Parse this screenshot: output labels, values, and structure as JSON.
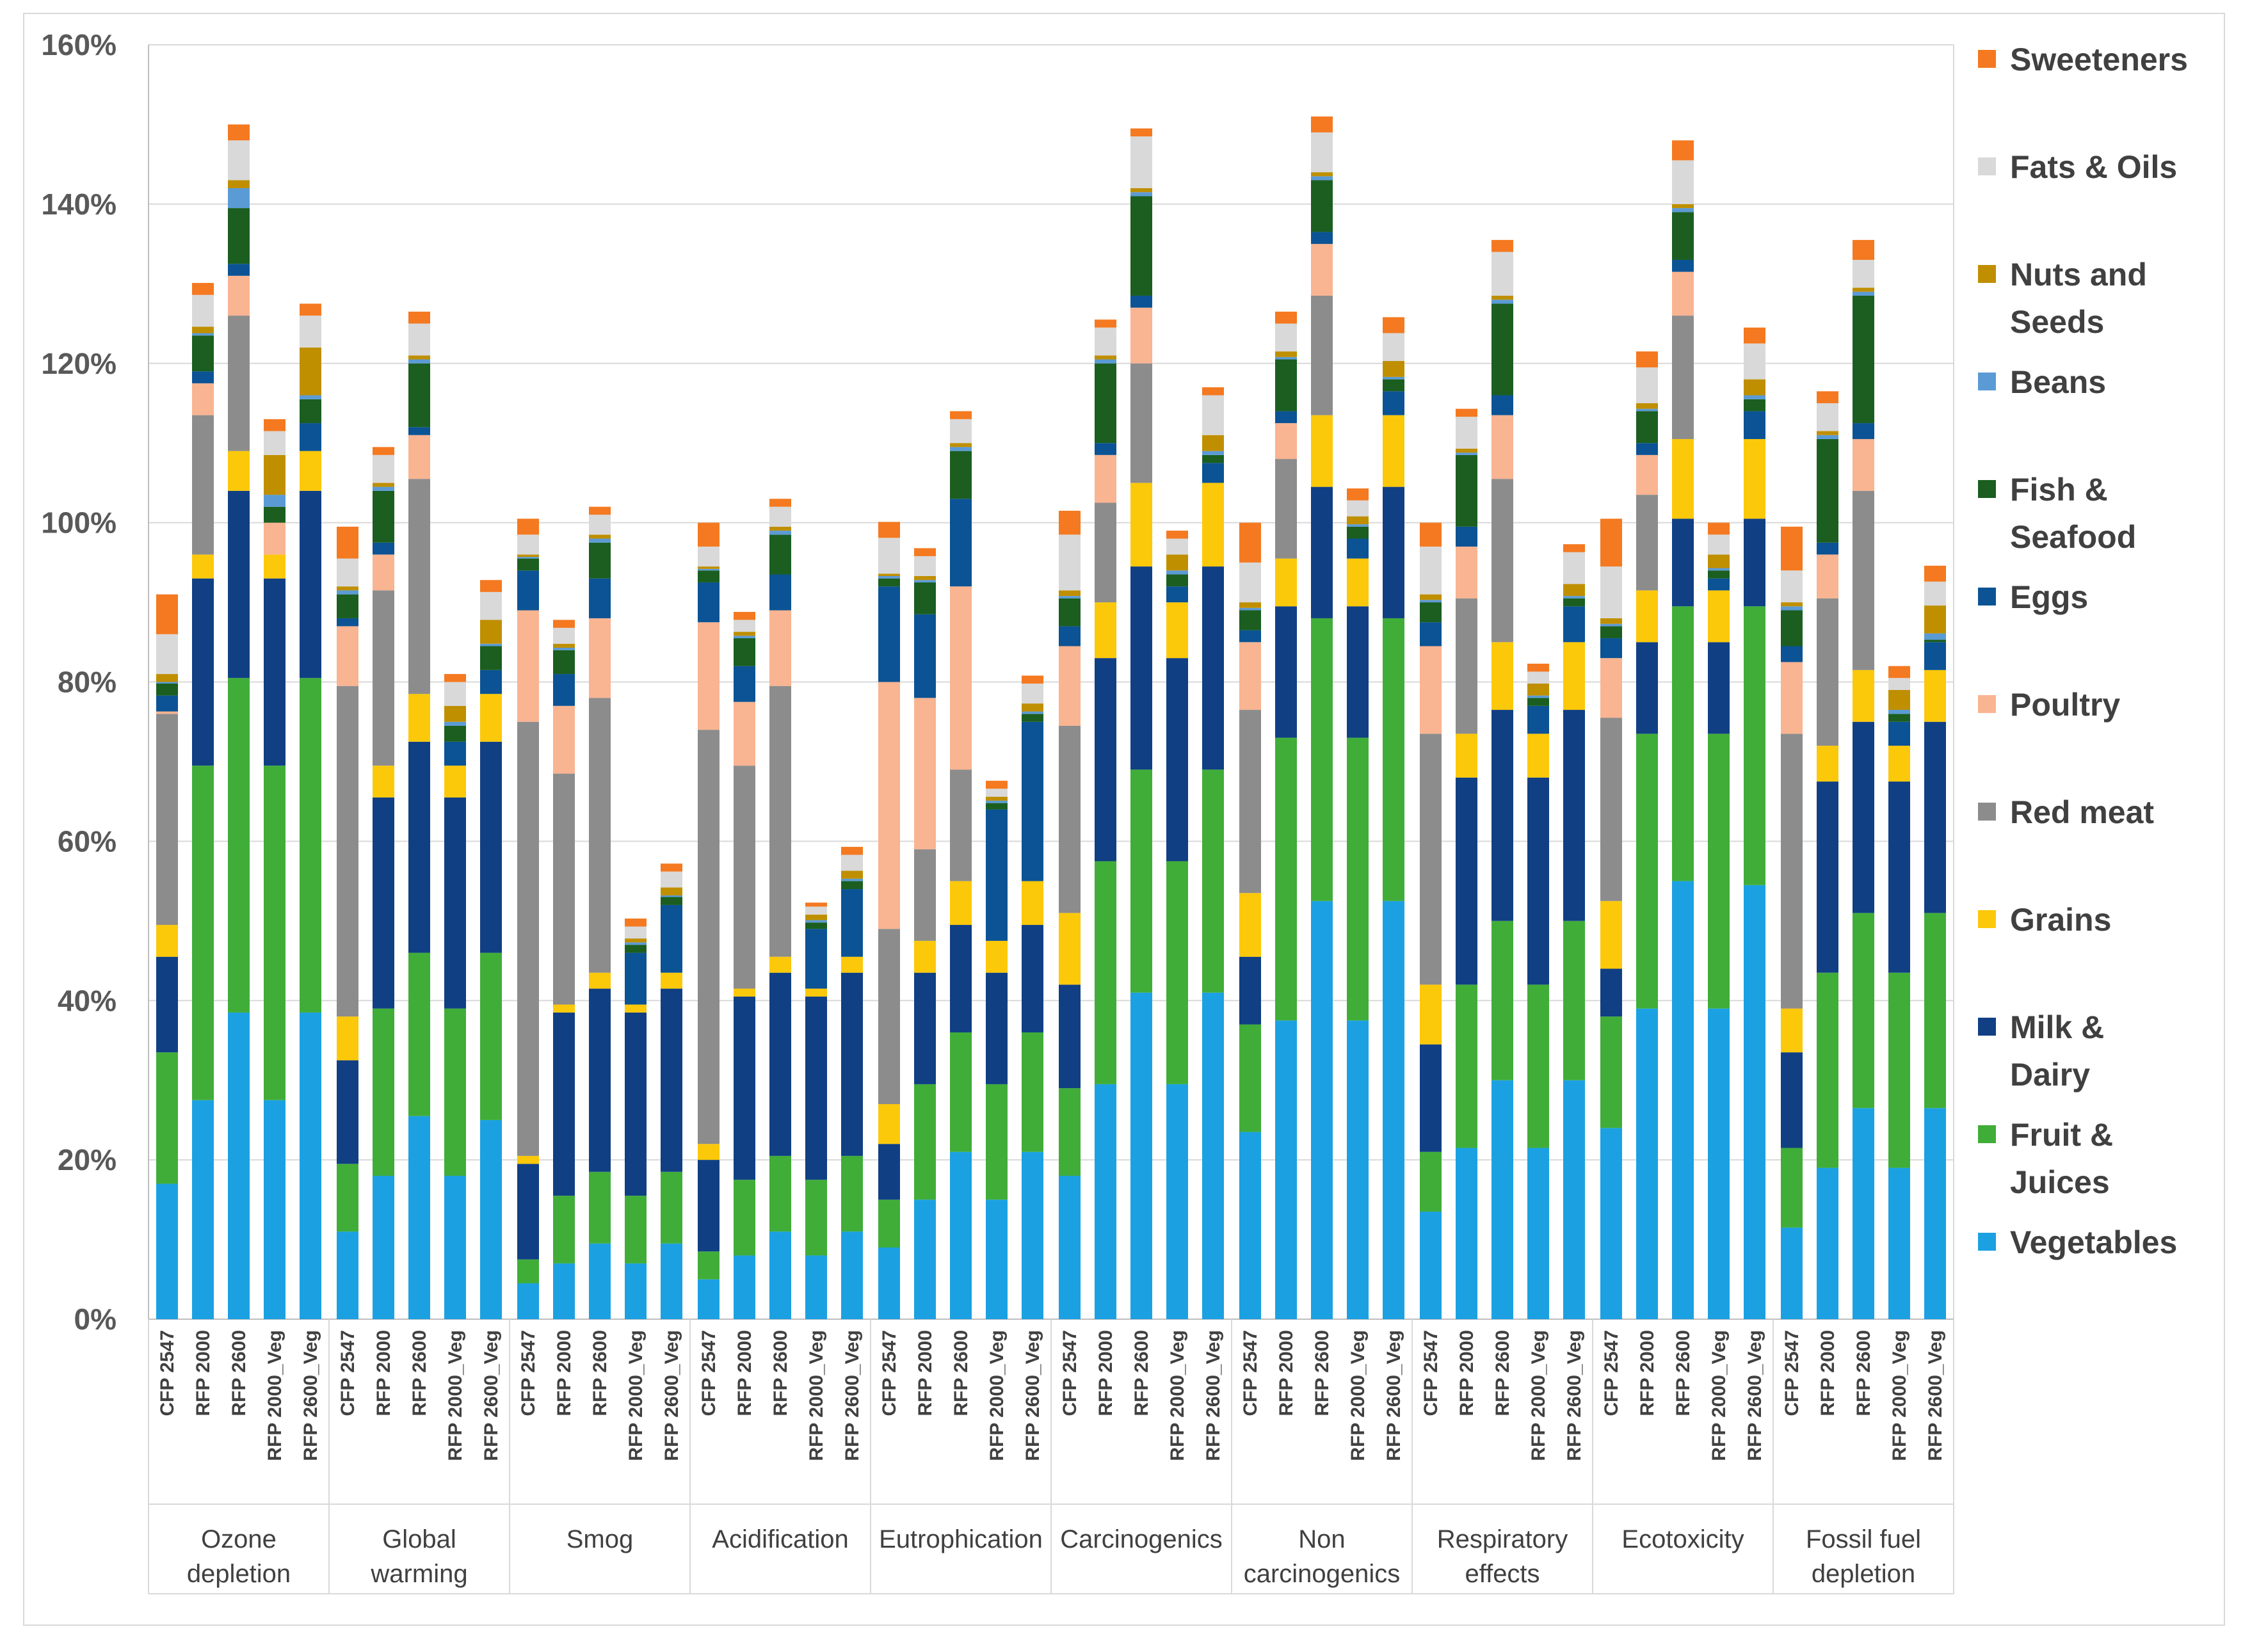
{
  "chart_data": {
    "type": "bar",
    "stacked": true,
    "ylim": [
      0,
      160
    ],
    "yticks": [
      0,
      20,
      40,
      60,
      80,
      100,
      120,
      140,
      160
    ],
    "ytick_labels": [
      "0%",
      "20%",
      "40%",
      "60%",
      "80%",
      "100%",
      "120%",
      "140%",
      "160%"
    ],
    "grid": true,
    "legend_position": "right",
    "scenarios": [
      "CFP 2547",
      "RFP 2000",
      "RFP 2600",
      "RFP 2000_Veg",
      "RFP 2600_Veg"
    ],
    "groups": [
      {
        "label_lines": [
          "Ozone",
          "depletion"
        ],
        "bars": [
          [
            17,
            16.5,
            12,
            4,
            26.5,
            0.3,
            2,
            1.5,
            0.2,
            1,
            5,
            5
          ],
          [
            27.5,
            42,
            23.5,
            3,
            17.5,
            4,
            1.5,
            4.5,
            0.3,
            0.8,
            4,
            1.5
          ],
          [
            38.5,
            42,
            23.5,
            5,
            17,
            5,
            1.5,
            7,
            2.5,
            1,
            5,
            2
          ],
          [
            27.5,
            42,
            23.5,
            3,
            0,
            4,
            0,
            2,
            1.5,
            5,
            3,
            1.5
          ],
          [
            38.5,
            42,
            23.5,
            5,
            0,
            0,
            3.5,
            3,
            0.5,
            6,
            4,
            1.5
          ]
        ]
      },
      {
        "label_lines": [
          "Global",
          "warming"
        ],
        "bars": [
          [
            11,
            8.5,
            13,
            5.5,
            41.5,
            7.5,
            1,
            3,
            0.5,
            0.5,
            3.5,
            4
          ],
          [
            18,
            21,
            26.5,
            4,
            22,
            4.5,
            1.5,
            6.5,
            0.5,
            0.5,
            3.5,
            1
          ],
          [
            25.5,
            20.5,
            26.5,
            6,
            27,
            5.5,
            1,
            8,
            0.5,
            0.5,
            4,
            1.5
          ],
          [
            18,
            21,
            26.5,
            4,
            0,
            0,
            3,
            2,
            0.5,
            2,
            3,
            1
          ],
          [
            25,
            21,
            26.5,
            6,
            0,
            0,
            3,
            3,
            0.3,
            3,
            3.5,
            1.5
          ]
        ]
      },
      {
        "label_lines": [
          "Smog"
        ],
        "bars": [
          [
            4.5,
            3,
            12,
            1,
            54.5,
            14,
            5,
            1.5,
            0.2,
            0.3,
            2.5,
            2
          ],
          [
            7,
            8.5,
            23,
            1,
            29,
            8.5,
            4,
            3,
            0.3,
            0.5,
            2,
            1
          ],
          [
            9.5,
            9,
            23,
            2,
            34.5,
            10,
            5,
            4.5,
            0.5,
            0.5,
            2.5,
            1
          ],
          [
            7,
            8.5,
            23,
            1,
            0,
            0,
            6.5,
            1,
            0.3,
            0.5,
            1.5,
            1
          ],
          [
            9.5,
            9,
            23,
            2,
            0,
            0,
            8.5,
            1,
            0.2,
            1,
            2,
            1
          ]
        ]
      },
      {
        "label_lines": [
          "Acidification"
        ],
        "bars": [
          [
            5,
            3.5,
            11.5,
            2,
            52,
            13.5,
            5,
            1.5,
            0.2,
            0.3,
            2.5,
            3
          ],
          [
            8,
            9.5,
            23,
            1,
            28,
            8,
            4.5,
            3.5,
            0.3,
            0.5,
            1.5,
            1
          ],
          [
            11,
            9.5,
            23,
            2,
            34,
            9.5,
            4.5,
            5,
            0.5,
            0.5,
            2.5,
            1
          ],
          [
            8,
            9.5,
            23,
            1,
            0,
            0,
            7.5,
            0.8,
            0.3,
            0.7,
            1,
            0.5
          ],
          [
            11,
            9.5,
            23,
            2,
            0,
            0,
            8.5,
            1,
            0.3,
            1,
            2,
            1
          ]
        ]
      },
      {
        "label_lines": [
          "Eutrophication"
        ],
        "bars": [
          [
            9,
            6,
            7,
            5,
            22,
            31,
            12,
            1,
            0.3,
            0.3,
            4.5,
            2
          ],
          [
            15,
            14.5,
            14,
            4,
            11.5,
            19,
            10.5,
            4,
            0.3,
            0.5,
            2.5,
            1
          ],
          [
            21,
            15,
            13.5,
            5.5,
            14,
            23,
            11,
            6,
            0.5,
            0.5,
            3,
            1
          ],
          [
            15,
            14.5,
            14,
            4,
            0,
            0,
            16.5,
            0.8,
            0.3,
            0.5,
            1,
            1
          ],
          [
            21,
            15,
            13.5,
            5.5,
            0,
            0,
            20,
            1,
            0.3,
            1,
            2.5,
            1
          ]
        ]
      },
      {
        "label_lines": [
          "Carcinogenics"
        ],
        "bars": [
          [
            18,
            11,
            13,
            9,
            23.5,
            10,
            2.5,
            3.5,
            0.3,
            0.7,
            7,
            3
          ],
          [
            29.5,
            28,
            25.5,
            7,
            12.5,
            6,
            1.5,
            10,
            0.5,
            0.5,
            3.5,
            1
          ],
          [
            41,
            28,
            25.5,
            10.5,
            15,
            7,
            1.5,
            12.5,
            0.5,
            0.5,
            6.5,
            1
          ],
          [
            29.5,
            28,
            25.5,
            7,
            0,
            0,
            2,
            1.5,
            0.5,
            2,
            2,
            1
          ],
          [
            41,
            28,
            25.5,
            10.5,
            0,
            0,
            2.5,
            1,
            0.5,
            2,
            5,
            1
          ]
        ]
      },
      {
        "label_lines": [
          "Non",
          "carcinogenics"
        ],
        "bars": [
          [
            23.5,
            13.5,
            8.5,
            8,
            23,
            8.5,
            1.5,
            2.5,
            0.3,
            0.7,
            5,
            5
          ],
          [
            37.5,
            35.5,
            16.5,
            6,
            12.5,
            4.5,
            1.5,
            6.5,
            0.3,
            0.7,
            3.5,
            1.5
          ],
          [
            52.5,
            35.5,
            16.5,
            9,
            15,
            6.5,
            1.5,
            6.5,
            0.5,
            0.5,
            5,
            2
          ],
          [
            37.5,
            35.5,
            16.5,
            6,
            0,
            0,
            2.5,
            1.5,
            0.3,
            1,
            2,
            1.5
          ],
          [
            52.5,
            35.5,
            16.5,
            9,
            0,
            0,
            3,
            1.5,
            0.3,
            2,
            3.5,
            2
          ]
        ]
      },
      {
        "label_lines": [
          "Respiratory",
          "effects"
        ],
        "bars": [
          [
            13.5,
            7.5,
            13.5,
            7.5,
            31.5,
            11,
            3,
            2.5,
            0.3,
            0.7,
            6,
            3
          ],
          [
            21.5,
            20.5,
            26,
            5.5,
            17,
            6.5,
            2.5,
            9,
            0.3,
            0.5,
            4,
            1
          ],
          [
            30,
            20,
            26.5,
            8.5,
            20.5,
            8,
            2.5,
            11.5,
            0.5,
            0.5,
            5.5,
            1.5
          ],
          [
            21.5,
            20.5,
            26,
            5.5,
            0,
            0,
            3.5,
            1,
            0.3,
            1.5,
            1.5,
            1
          ],
          [
            30,
            20,
            26.5,
            8.5,
            0,
            0,
            4.5,
            1,
            0.3,
            1.5,
            4,
            1
          ]
        ]
      },
      {
        "label_lines": [
          "Ecotoxicity"
        ],
        "bars": [
          [
            24,
            14,
            6,
            8.5,
            23,
            7.5,
            2.5,
            1.5,
            0.3,
            0.7,
            6.5,
            6
          ],
          [
            39,
            34.5,
            11.5,
            6.5,
            12,
            5,
            1.5,
            4,
            0.3,
            0.7,
            4.5,
            2
          ],
          [
            55,
            34.5,
            11,
            10,
            15.5,
            5.5,
            1.5,
            6,
            0.5,
            0.5,
            5.5,
            2.5
          ],
          [
            39,
            34.5,
            11.5,
            6.5,
            0,
            0,
            1.5,
            1,
            0.3,
            1.7,
            2.5,
            1.5
          ],
          [
            54.5,
            35,
            11,
            10,
            0,
            0,
            3.5,
            1.5,
            0.5,
            2,
            4.5,
            2
          ]
        ]
      },
      {
        "label_lines": [
          "Fossil fuel",
          "depletion"
        ],
        "bars": [
          [
            11.5,
            10,
            12,
            5.5,
            34.5,
            9,
            2,
            4.5,
            0.5,
            0.5,
            4,
            5.5
          ],
          [
            19,
            24.5,
            24,
            4.5,
            18.5,
            5.5,
            1.5,
            13,
            0.5,
            0.5,
            3.5,
            1.5
          ],
          [
            26.5,
            24.5,
            24,
            6.5,
            22.5,
            6.5,
            2,
            16,
            0.5,
            0.5,
            3.5,
            2.5
          ],
          [
            19,
            24.5,
            24,
            4.5,
            0,
            0,
            3,
            1,
            0.5,
            2.5,
            1.5,
            1.5
          ],
          [
            26.5,
            24.5,
            24,
            6.5,
            0,
            0,
            3.5,
            0.3,
            0.8,
            3.5,
            3,
            2
          ]
        ]
      }
    ],
    "series": [
      {
        "name": "Vegetables",
        "color": "#1ba1e2"
      },
      {
        "name": "Fruit & Juices",
        "color": "#40ad39"
      },
      {
        "name": "Milk & Dairy",
        "color": "#103f84"
      },
      {
        "name": "Grains",
        "color": "#fcc80a"
      },
      {
        "name": "Red meat",
        "color": "#8c8c8c"
      },
      {
        "name": "Poultry",
        "color": "#f9b491"
      },
      {
        "name": "Eggs",
        "color": "#0b5394"
      },
      {
        "name": "Fish & Seafood",
        "color": "#1b5e20"
      },
      {
        "name": "Beans",
        "color": "#5b9bd5"
      },
      {
        "name": "Nuts and Seeds",
        "color": "#bf8f00"
      },
      {
        "name": "Fats & Oils",
        "color": "#d9d9d9"
      },
      {
        "name": "Sweeteners",
        "color": "#f47920"
      }
    ],
    "legend": [
      {
        "name": "Sweeteners",
        "lines": [
          "Sweeteners"
        ]
      },
      {
        "name": "Fats & Oils",
        "lines": [
          "Fats & Oils"
        ]
      },
      {
        "name": "Nuts and Seeds",
        "lines": [
          "Nuts and",
          "Seeds"
        ]
      },
      {
        "name": "Beans",
        "lines": [
          "Beans"
        ]
      },
      {
        "name": "Fish & Seafood",
        "lines": [
          "Fish &",
          "Seafood"
        ]
      },
      {
        "name": "Eggs",
        "lines": [
          "Eggs"
        ]
      },
      {
        "name": "Poultry",
        "lines": [
          "Poultry"
        ]
      },
      {
        "name": "Red meat",
        "lines": [
          "Red meat"
        ]
      },
      {
        "name": "Grains",
        "lines": [
          "Grains"
        ]
      },
      {
        "name": "Milk & Dairy",
        "lines": [
          "Milk &",
          "Dairy"
        ]
      },
      {
        "name": "Fruit & Juices",
        "lines": [
          "Fruit &",
          "Juices"
        ]
      },
      {
        "name": "Vegetables",
        "lines": [
          "Vegetables"
        ]
      }
    ]
  }
}
